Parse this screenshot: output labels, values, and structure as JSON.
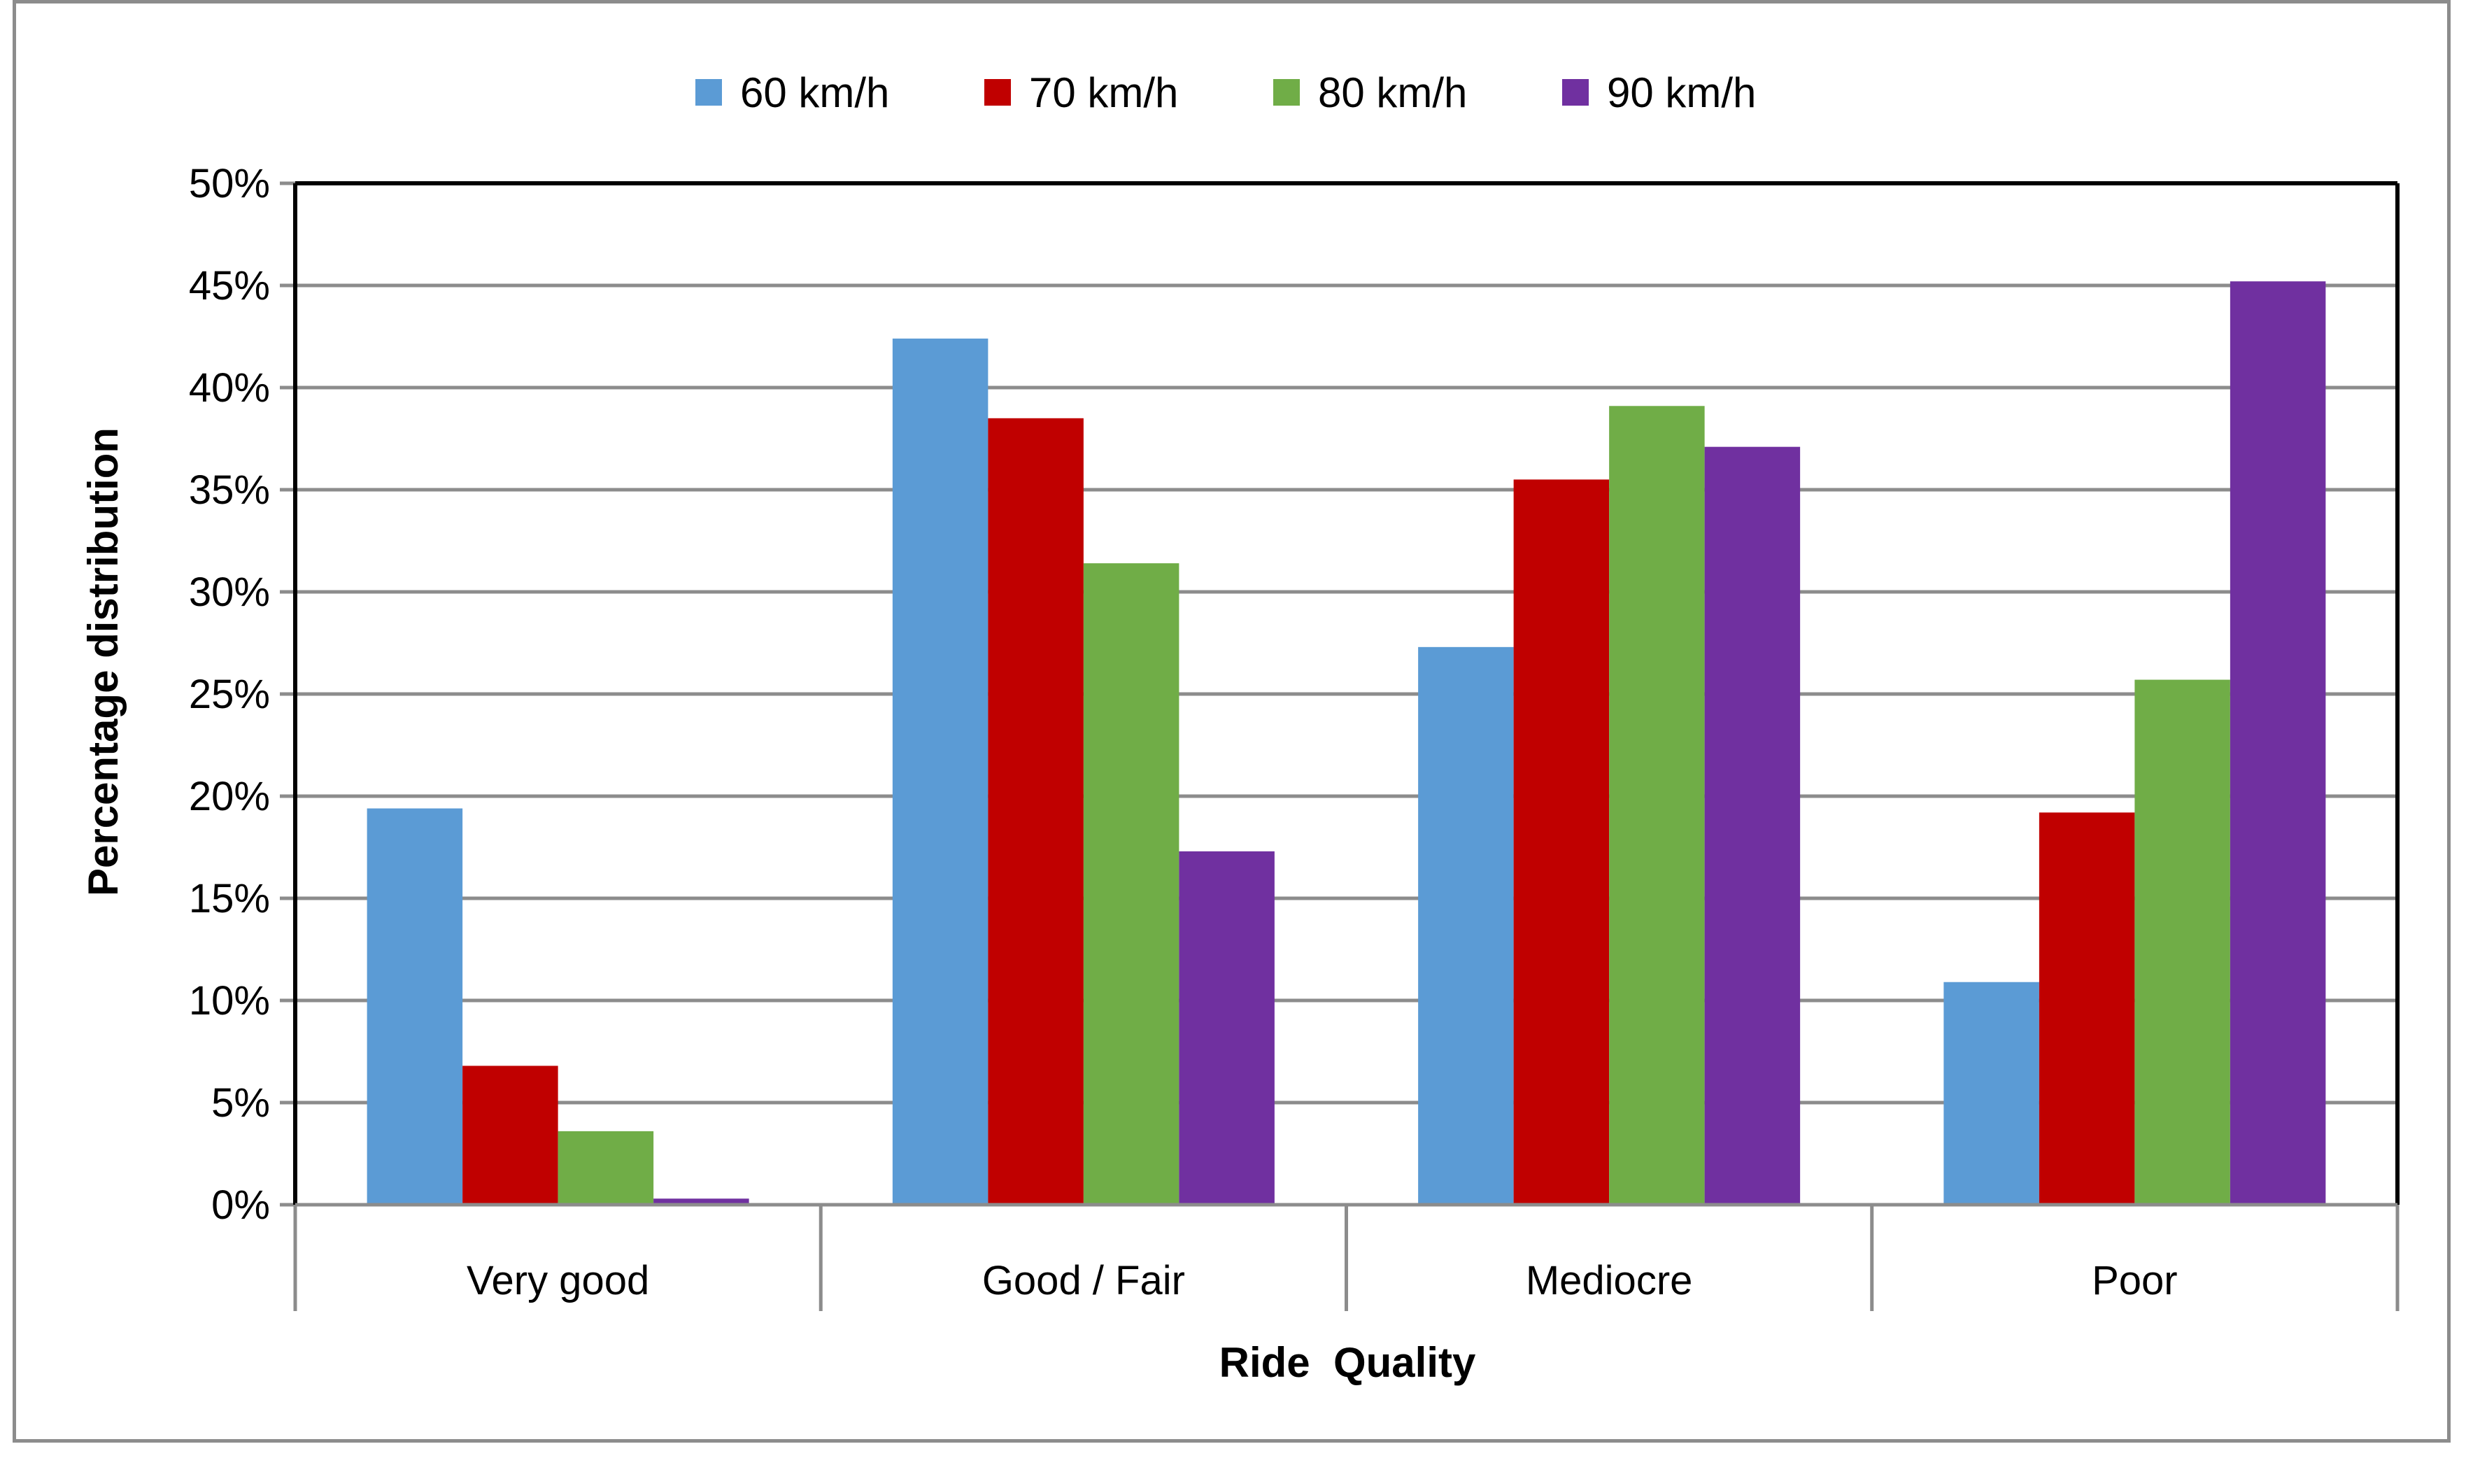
{
  "chart_data": {
    "type": "bar",
    "title": "",
    "xlabel": "Ride  Quality",
    "ylabel": "Percentage distribution",
    "ylim": [
      0,
      50
    ],
    "yticks": [
      0,
      5,
      10,
      15,
      20,
      25,
      30,
      35,
      40,
      45,
      50
    ],
    "ytick_labels": [
      "0%",
      "5%",
      "10%",
      "15%",
      "20%",
      "25%",
      "30%",
      "35%",
      "40%",
      "45%",
      "50%"
    ],
    "grid": true,
    "legend_position": "top",
    "categories": [
      "Very good",
      "Good / Fair",
      "Mediocre",
      "Poor"
    ],
    "series": [
      {
        "name": "60 km/h",
        "color": "#5b9bd5",
        "values": [
          19.4,
          42.4,
          27.3,
          10.9
        ]
      },
      {
        "name": "70 km/h",
        "color": "#c00000",
        "values": [
          6.8,
          38.5,
          35.5,
          19.2
        ]
      },
      {
        "name": "80 km/h",
        "color": "#70ad47",
        "values": [
          3.6,
          31.4,
          39.1,
          25.7
        ]
      },
      {
        "name": "90 km/h",
        "color": "#7030a0",
        "values": [
          0.3,
          17.3,
          37.1,
          45.2
        ]
      }
    ]
  }
}
